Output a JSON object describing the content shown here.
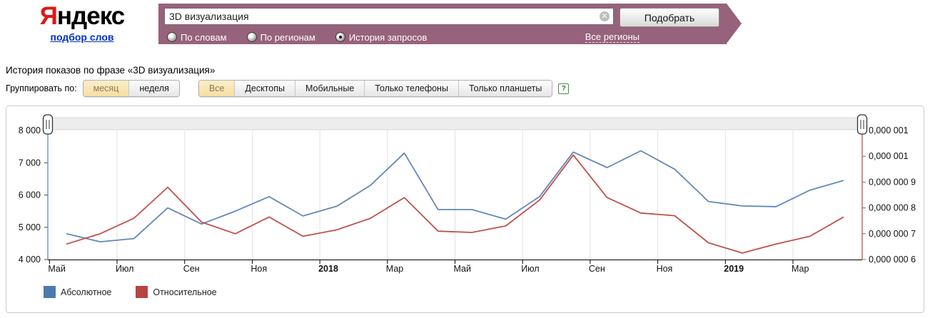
{
  "header": {
    "logo": {
      "brand_first": "Я",
      "brand_rest": "ндекс",
      "service_link": "подбор слов"
    },
    "search": {
      "value": "3D визуализация",
      "clear_icon": "✕",
      "submit_label": "Подобрать",
      "regions_link": "Все регионы"
    },
    "tabs": [
      {
        "label": "По словам",
        "selected": false
      },
      {
        "label": "По регионам",
        "selected": false
      },
      {
        "label": "История запросов",
        "selected": true
      }
    ]
  },
  "main": {
    "title": "История показов по фразе «3D визуализация»",
    "group_by": {
      "label": "Группировать по:",
      "options": [
        {
          "label": "месяц",
          "selected": true
        },
        {
          "label": "неделя",
          "selected": false
        }
      ]
    },
    "device_filters": [
      {
        "label": "Все",
        "selected": true
      },
      {
        "label": "Десктопы",
        "selected": false
      },
      {
        "label": "Мобильные",
        "selected": false
      },
      {
        "label": "Только телефоны",
        "selected": false
      },
      {
        "label": "Только планшеты",
        "selected": false
      }
    ],
    "help_icon": "?"
  },
  "chart_data": {
    "type": "line",
    "x": [
      "2017-05",
      "2017-06",
      "2017-07",
      "2017-08",
      "2017-09",
      "2017-10",
      "2017-11",
      "2017-12",
      "2018-01",
      "2018-02",
      "2018-03",
      "2018-04",
      "2018-05",
      "2018-06",
      "2018-07",
      "2018-08",
      "2018-09",
      "2018-10",
      "2018-11",
      "2018-12",
      "2019-01",
      "2019-02",
      "2019-03",
      "2019-04"
    ],
    "x_ticks": [
      {
        "k": 0,
        "label": "Май",
        "bold": false
      },
      {
        "k": 2,
        "label": "Июл",
        "bold": false
      },
      {
        "k": 4,
        "label": "Сен",
        "bold": false
      },
      {
        "k": 6,
        "label": "Ноя",
        "bold": false
      },
      {
        "k": 8,
        "label": "2018",
        "bold": true
      },
      {
        "k": 10,
        "label": "Мар",
        "bold": false
      },
      {
        "k": 12,
        "label": "Май",
        "bold": false
      },
      {
        "k": 14,
        "label": "Июл",
        "bold": false
      },
      {
        "k": 16,
        "label": "Сен",
        "bold": false
      },
      {
        "k": 18,
        "label": "Ноя",
        "bold": false
      },
      {
        "k": 20,
        "label": "2019",
        "bold": true
      },
      {
        "k": 22,
        "label": "Мар",
        "bold": false
      }
    ],
    "left_axis": {
      "range": [
        4000,
        8000
      ],
      "tick_labels_top_down": [
        "8 000",
        "7 000",
        "6 000",
        "5 000",
        "4 000"
      ]
    },
    "right_axis": {
      "range": [
        6e-07,
        1.1e-06
      ],
      "tick_labels_top_down": [
        "0,000 001",
        "0,000 001",
        "0,000 000 9",
        "0,000 000 8",
        "0,000 000 7",
        "0,000 000 6"
      ]
    },
    "grid": "vertical-only",
    "series": [
      {
        "name": "Абсолютное",
        "axis": "left",
        "color": "#6288bb",
        "values": [
          4800,
          4550,
          4650,
          5600,
          5100,
          5500,
          5950,
          5350,
          5650,
          6300,
          7300,
          5550,
          5550,
          5250,
          5950,
          7330,
          6850,
          7370,
          6800,
          5800,
          5660,
          5640,
          6150,
          6450
        ]
      },
      {
        "name": "Относительное",
        "axis": "right",
        "color": "#c05149",
        "values": [
          6.6e-07,
          7e-07,
          7.6e-07,
          8.8e-07,
          7.45e-07,
          7e-07,
          7.65e-07,
          6.9e-07,
          7.15e-07,
          7.6e-07,
          8.4e-07,
          7.1e-07,
          7.05e-07,
          7.3e-07,
          8.3e-07,
          1.005e-06,
          8.4e-07,
          7.8e-07,
          7.7e-07,
          6.65e-07,
          6.25e-07,
          6.6e-07,
          6.9e-07,
          7.65e-07
        ]
      }
    ],
    "legend_position": "bottom-left"
  },
  "legend": [
    {
      "label": "Абсолютное",
      "color": "#4c79ae"
    },
    {
      "label": "Относительное",
      "color": "#b4463f"
    }
  ],
  "colors": {
    "topbar": "#97627c",
    "selected_segment": "#f6dfa2",
    "grid_line": "#e1e1e1",
    "left_axis_line": "#6288bb",
    "right_axis_line": "#c05149"
  }
}
